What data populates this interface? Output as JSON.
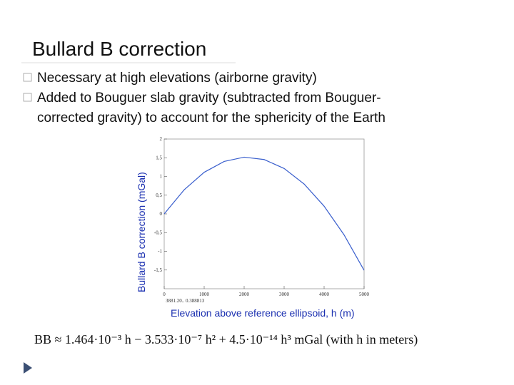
{
  "slide": {
    "title": "Bullard B correction",
    "bullets": [
      [
        "Necessary at high elevations (airborne gravity)"
      ],
      [
        "Added to Bouguer slab gravity (subtracted from Bouguer-",
        "corrected  gravity) to account for the sphericity  of the Earth"
      ]
    ],
    "formula": "BB ≈ 1.464·10⁻³ h − 3.533·10⁻⁷ h² + 4.5·10⁻¹⁴ h³  mGal (with h in meters)"
  },
  "chart_data": {
    "type": "line",
    "xlabel": "Elevation above reference ellipsoid, h (m)",
    "ylabel": "Bullard B correction (mGal)",
    "readout": "3881.20.. 0.388813",
    "x": [
      0,
      500,
      1000,
      1500,
      2000,
      2500,
      3000,
      3500,
      4000,
      4500,
      5000
    ],
    "series": [
      {
        "color": "#3a5fcd",
        "values": [
          0,
          0.644,
          1.111,
          1.401,
          1.515,
          1.452,
          1.213,
          0.798,
          0.206,
          -0.562,
          -1.507
        ]
      }
    ],
    "xlim": [
      0,
      5000
    ],
    "xticks": [
      0,
      1000,
      2000,
      3000,
      4000,
      5000
    ],
    "ylim": [
      -2,
      2
    ],
    "yticks": [
      {
        "value": -1.5,
        "label": "-1,5"
      },
      -1,
      {
        "value": -0.5,
        "label": "-0,5"
      },
      0,
      {
        "value": 0.5,
        "label": "0,5"
      },
      1,
      {
        "value": 1.5,
        "label": "1,5"
      },
      2
    ]
  }
}
